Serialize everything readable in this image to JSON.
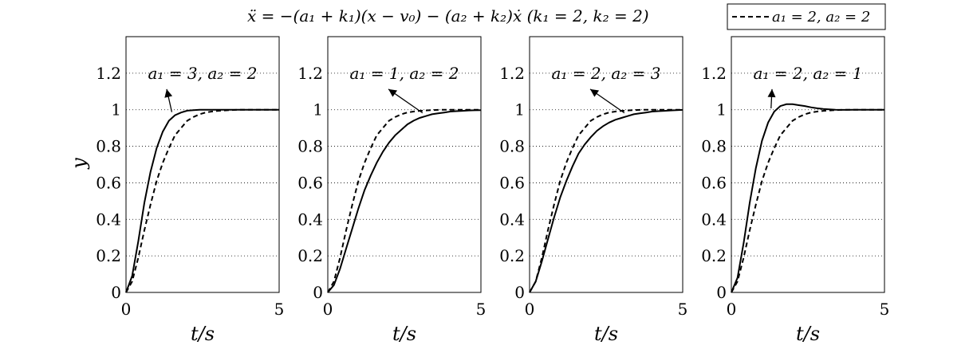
{
  "chart_data": {
    "type": "line",
    "title": "ẍ = −(a₁ + k₁)(x − v₀) − (a₂ + k₂)ẋ    (k₁ = 2, k₂ = 2)",
    "ylabel": "y",
    "xlabel": "t/s",
    "xlim": [
      0,
      5
    ],
    "ylim": [
      0,
      1.4
    ],
    "x_ticks": [
      "0",
      "5"
    ],
    "y_ticks": [
      "0",
      "0.2",
      "0.4",
      "0.6",
      "0.8",
      "1",
      "1.2"
    ],
    "grid": "horizontal dotted",
    "legend": {
      "placement": "top-right",
      "entries": [
        "a₁ = 2, a₂ = 2"
      ]
    },
    "t": [
      0,
      0.2,
      0.4,
      0.6,
      0.8,
      1.0,
      1.2,
      1.4,
      1.6,
      1.8,
      2.0,
      2.2,
      2.4,
      2.6,
      2.8,
      3.0,
      3.2,
      3.4,
      3.6,
      3.8,
      4.0,
      4.2,
      4.4,
      4.6,
      4.8,
      5.0
    ],
    "baseline": [
      0,
      0.06,
      0.19,
      0.34,
      0.48,
      0.61,
      0.71,
      0.79,
      0.86,
      0.9,
      0.94,
      0.96,
      0.975,
      0.985,
      0.99,
      0.994,
      0.996,
      0.998,
      0.999,
      1.0,
      1.0,
      1.0,
      1.0,
      1.0,
      1.0,
      1.0
    ],
    "panels": [
      {
        "annotation": "a₁ = 3, a₂ = 2",
        "values": [
          0,
          0.09,
          0.28,
          0.49,
          0.66,
          0.79,
          0.88,
          0.94,
          0.97,
          0.985,
          0.995,
          0.998,
          1.0,
          1.0,
          1.0,
          1.0,
          1.0,
          1.0,
          1.0,
          1.0,
          1.0,
          1.0,
          1.0,
          1.0,
          1.0,
          1.0
        ]
      },
      {
        "annotation": "a₁ = 1, a₂ = 2",
        "values": [
          0,
          0.04,
          0.13,
          0.24,
          0.35,
          0.46,
          0.56,
          0.64,
          0.71,
          0.77,
          0.82,
          0.86,
          0.89,
          0.92,
          0.94,
          0.955,
          0.965,
          0.975,
          0.98,
          0.985,
          0.99,
          0.992,
          0.994,
          0.996,
          0.997,
          0.998
        ]
      },
      {
        "annotation": "a₁ = 2, a₂ = 3",
        "values": [
          0,
          0.06,
          0.17,
          0.29,
          0.41,
          0.52,
          0.61,
          0.69,
          0.76,
          0.81,
          0.85,
          0.885,
          0.91,
          0.93,
          0.945,
          0.955,
          0.965,
          0.975,
          0.98,
          0.985,
          0.99,
          0.992,
          0.994,
          0.996,
          0.998,
          0.999
        ]
      },
      {
        "annotation": "a₁ = 2, a₂ = 1",
        "values": [
          0,
          0.08,
          0.27,
          0.49,
          0.68,
          0.83,
          0.93,
          0.99,
          1.02,
          1.03,
          1.03,
          1.025,
          1.02,
          1.013,
          1.008,
          1.004,
          1.002,
          1.0,
          0.999,
          0.999,
          1.0,
          1.0,
          1.0,
          1.0,
          1.0,
          1.0
        ]
      }
    ]
  }
}
